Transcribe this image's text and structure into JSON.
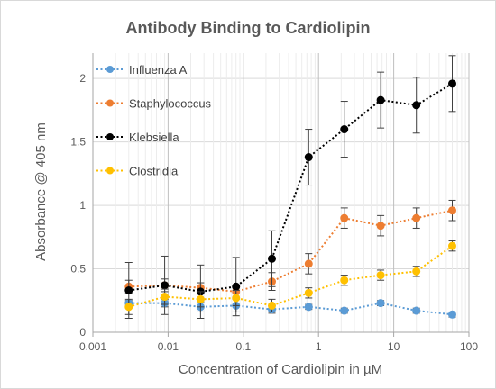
{
  "chart_data": {
    "type": "scatter",
    "title": "Antibody Binding to Cardiolipin",
    "xlabel": "Concentration of Cardiolipin in µM",
    "ylabel": "Absorbance @ 405 nm",
    "x_scale": "log",
    "xlim": [
      0.001,
      100
    ],
    "ylim": [
      0,
      2.2
    ],
    "x_ticks": [
      0.001,
      0.01,
      0.1,
      1,
      10,
      100
    ],
    "x_tick_labels": [
      "0.001",
      "0.01",
      "0.1",
      "1",
      "10",
      "100"
    ],
    "y_ticks": [
      0,
      0.5,
      1,
      1.5,
      2
    ],
    "y_tick_labels": [
      "0",
      "0.5",
      "1",
      "1.5",
      "2"
    ],
    "grid": true,
    "legend_position": "top-left",
    "x": [
      0.003,
      0.009,
      0.027,
      0.08,
      0.24,
      0.74,
      2.2,
      6.7,
      20,
      60
    ],
    "series": [
      {
        "name": "Influenza A",
        "color": "#5b9bd5",
        "values": [
          0.23,
          0.23,
          0.2,
          0.21,
          0.18,
          0.2,
          0.17,
          0.23,
          0.17,
          0.14
        ],
        "errors": [
          0.02,
          0.03,
          0.04,
          0.05,
          0.03,
          0.02,
          0.02,
          0.02,
          0.02,
          0.02
        ]
      },
      {
        "name": "Staphylococcus",
        "color": "#ed7d31",
        "values": [
          0.36,
          0.37,
          0.35,
          0.32,
          0.4,
          0.54,
          0.9,
          0.84,
          0.9,
          0.96
        ],
        "errors": [
          0.05,
          0.05,
          0.04,
          0.05,
          0.07,
          0.08,
          0.08,
          0.08,
          0.08,
          0.08
        ]
      },
      {
        "name": "Klebsiella",
        "color": "#000000",
        "values": [
          0.33,
          0.37,
          0.32,
          0.36,
          0.58,
          1.38,
          1.6,
          1.83,
          1.79,
          1.96
        ],
        "errors": [
          0.22,
          0.23,
          0.21,
          0.23,
          0.22,
          0.22,
          0.22,
          0.22,
          0.22,
          0.22
        ]
      },
      {
        "name": "Clostridia",
        "color": "#ffc000",
        "values": [
          0.2,
          0.28,
          0.26,
          0.27,
          0.21,
          0.31,
          0.41,
          0.45,
          0.48,
          0.68
        ],
        "errors": [
          0.06,
          0.06,
          0.06,
          0.06,
          0.05,
          0.04,
          0.04,
          0.04,
          0.04,
          0.04
        ]
      }
    ]
  }
}
